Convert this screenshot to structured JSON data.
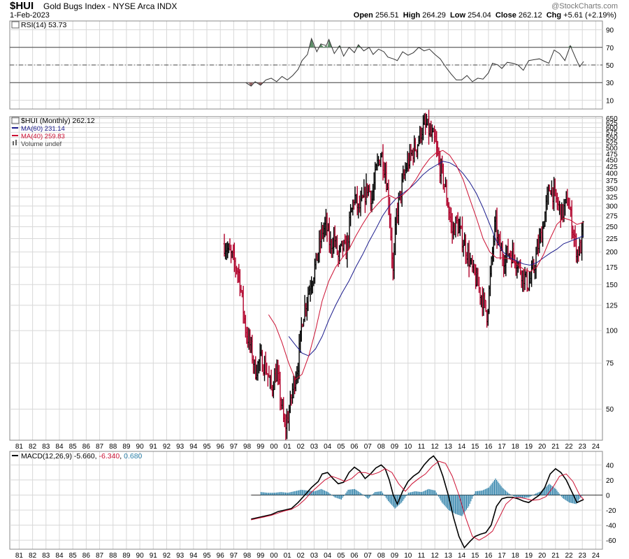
{
  "header": {
    "symbol": "$HUI",
    "name": "Gold Bugs Index - NYSE Arca  INDX",
    "date": "1-Feb-2023",
    "brand": "@StockCharts.com",
    "open_label": "Open",
    "open": "256.51",
    "high_label": "High",
    "high": "264.29",
    "low_label": "Low",
    "low": "254.04",
    "close_label": "Close",
    "close": "262.12",
    "chg_label": "Chg",
    "chg": "+5.61 (+2.19%)"
  },
  "colors": {
    "price_up": "#000000",
    "price_down": "#b0002a",
    "ma60": "#1a1a8c",
    "ma40": "#cc1133",
    "rsi_line": "#333333",
    "rsi_ob_fill": "#5f8f6a",
    "rsi_os_fill": "#8f5f5f",
    "macd_line": "#000000",
    "signal_line": "#cc1133",
    "hist": "#2a7fa8",
    "grid": "#d8d8d8"
  },
  "chart_data": [
    {
      "type": "line",
      "panel": "rsi",
      "legend": "RSI(14) 53.73",
      "yticks": [
        90,
        70,
        50,
        30,
        10
      ],
      "ylim": [
        0,
        100
      ],
      "reference_lines": [
        70,
        50,
        30
      ],
      "series": [
        {
          "values_x": [
            1997.9,
            1998.3,
            1998.6,
            1999.0,
            1999.4,
            1999.8,
            2000.2,
            2000.6,
            2001.0,
            2001.4,
            2001.8,
            2002.1,
            2002.5,
            2002.8,
            2003.2,
            2003.5,
            2003.9,
            2004.1,
            2004.5,
            2004.9,
            2005.2,
            2005.6,
            2006.0,
            2006.3,
            2006.7,
            2007.1,
            2007.4,
            2007.8,
            2008.2,
            2008.5,
            2008.9,
            2009.2,
            2009.6,
            2010.0,
            2010.4,
            2010.8,
            2011.2,
            2011.6,
            2012.0,
            2012.4,
            2012.8,
            2013.2,
            2013.6,
            2014.0,
            2014.4,
            2014.8,
            2015.2,
            2015.6,
            2016.0,
            2016.3,
            2016.7,
            2017.0,
            2017.4,
            2017.8,
            2018.2,
            2018.6,
            2019.0,
            2019.4,
            2019.8,
            2020.2,
            2020.5,
            2020.9,
            2021.3,
            2021.7,
            2022.1,
            2022.5,
            2022.8,
            2023.1
          ],
          "values_y": [
            30,
            26,
            31,
            27,
            33,
            35,
            31,
            37,
            33,
            38,
            45,
            55,
            62,
            80,
            65,
            74,
            72,
            79,
            63,
            72,
            60,
            70,
            64,
            73,
            66,
            70,
            62,
            68,
            65,
            59,
            57,
            55,
            65,
            61,
            64,
            70,
            66,
            68,
            62,
            57,
            48,
            40,
            33,
            33,
            38,
            31,
            35,
            34,
            41,
            52,
            50,
            46,
            53,
            52,
            50,
            44,
            55,
            56,
            57,
            54,
            52,
            67,
            63,
            55,
            72,
            58,
            48,
            54
          ]
        }
      ]
    },
    {
      "type": "bar",
      "panel": "price",
      "legend_price": "$HUI (Monthly) 262.12",
      "legend_ma60": "MA(60) 231.14",
      "legend_ma40": "MA(40) 259.83",
      "legend_volume": "Volume undef",
      "scale": "log",
      "ylim": [
        38,
        660
      ],
      "yticks": [
        650,
        625,
        600,
        575,
        550,
        525,
        500,
        475,
        450,
        425,
        400,
        375,
        350,
        325,
        300,
        275,
        250,
        225,
        200,
        175,
        150,
        125,
        100,
        75,
        50
      ],
      "xticks": [
        "81",
        "82",
        "83",
        "84",
        "85",
        "86",
        "87",
        "88",
        "89",
        "90",
        "91",
        "92",
        "93",
        "94",
        "95",
        "96",
        "97",
        "98",
        "99",
        "00",
        "01",
        "02",
        "03",
        "04",
        "05",
        "06",
        "07",
        "08",
        "09",
        "10",
        "11",
        "12",
        "13",
        "14",
        "15",
        "16",
        "17",
        "18",
        "19",
        "20",
        "21",
        "22",
        "23",
        "24"
      ],
      "price_path_x": [
        1996.3,
        1996.9,
        1997.4,
        1997.9,
        1998.3,
        1998.6,
        1999.0,
        1999.4,
        1999.8,
        2000.2,
        2000.5,
        2000.8,
        2001.1,
        2001.4,
        2001.8,
        2002.1,
        2002.4,
        2002.7,
        2003.0,
        2003.3,
        2003.6,
        2003.9,
        2004.2,
        2004.5,
        2004.8,
        2005.1,
        2005.4,
        2005.7,
        2006.0,
        2006.3,
        2006.6,
        2007.0,
        2007.3,
        2007.7,
        2008.0,
        2008.3,
        2008.6,
        2008.9,
        2009.1,
        2009.5,
        2009.9,
        2010.3,
        2010.7,
        2011.0,
        2011.4,
        2011.7,
        2012.0,
        2012.3,
        2012.6,
        2013.0,
        2013.3,
        2013.6,
        2014.0,
        2014.4,
        2014.8,
        2015.2,
        2015.6,
        2015.9,
        2016.2,
        2016.5,
        2016.8,
        2017.1,
        2017.5,
        2017.9,
        2018.3,
        2018.7,
        2019.0,
        2019.4,
        2019.7,
        2020.0,
        2020.3,
        2020.6,
        2020.9,
        2021.2,
        2021.5,
        2021.9,
        2022.2,
        2022.6,
        2022.9,
        2023.1
      ],
      "price_path_y": [
        215,
        190,
        165,
        100,
        85,
        70,
        78,
        72,
        60,
        70,
        55,
        42,
        48,
        60,
        75,
        110,
        130,
        150,
        170,
        200,
        240,
        255,
        210,
        230,
        190,
        210,
        200,
        270,
        330,
        290,
        310,
        360,
        320,
        430,
        480,
        410,
        300,
        160,
        270,
        350,
        430,
        480,
        520,
        590,
        610,
        560,
        530,
        440,
        390,
        300,
        240,
        260,
        230,
        200,
        170,
        150,
        130,
        115,
        175,
        260,
        210,
        190,
        200,
        195,
        175,
        160,
        150,
        175,
        210,
        240,
        300,
        360,
        330,
        300,
        280,
        320,
        260,
        200,
        210,
        262
      ],
      "series": [
        {
          "name": "MA(60)",
          "x": [
            2001.1,
            2001.6,
            2002.1,
            2002.6,
            2003.1,
            2003.6,
            2004.1,
            2004.6,
            2005.1,
            2005.6,
            2006.1,
            2006.6,
            2007.1,
            2007.6,
            2008.1,
            2008.6,
            2009.1,
            2009.6,
            2010.1,
            2010.6,
            2011.1,
            2011.6,
            2012.1,
            2012.6,
            2013.1,
            2013.6,
            2014.1,
            2014.6,
            2015.1,
            2015.6,
            2016.1,
            2016.6,
            2017.1,
            2017.6,
            2018.1,
            2018.6,
            2019.1,
            2019.6,
            2020.1,
            2020.6,
            2021.1,
            2021.6,
            2022.1,
            2022.6,
            2023.1
          ],
          "values": [
            95,
            88,
            82,
            80,
            85,
            95,
            110,
            125,
            140,
            155,
            175,
            195,
            220,
            245,
            275,
            300,
            320,
            335,
            350,
            370,
            395,
            415,
            430,
            445,
            440,
            425,
            400,
            370,
            335,
            295,
            255,
            220,
            200,
            190,
            185,
            180,
            178,
            182,
            190,
            198,
            205,
            215,
            220,
            225,
            231
          ]
        },
        {
          "name": "MA(40)",
          "x": [
            1999.6,
            2000.1,
            2000.6,
            2001.1,
            2001.6,
            2002.1,
            2002.6,
            2003.1,
            2003.6,
            2004.1,
            2004.6,
            2005.1,
            2005.6,
            2006.1,
            2006.6,
            2007.1,
            2007.6,
            2008.1,
            2008.6,
            2009.1,
            2009.6,
            2010.1,
            2010.6,
            2011.1,
            2011.6,
            2012.1,
            2012.6,
            2013.1,
            2013.6,
            2014.1,
            2014.6,
            2015.1,
            2015.6,
            2016.1,
            2016.6,
            2017.1,
            2017.6,
            2018.1,
            2018.6,
            2019.1,
            2019.6,
            2020.1,
            2020.6,
            2021.1,
            2021.6,
            2022.1,
            2022.6,
            2023.1
          ],
          "values": [
            115,
            105,
            90,
            75,
            65,
            68,
            80,
            100,
            130,
            155,
            175,
            190,
            205,
            230,
            255,
            280,
            300,
            320,
            330,
            320,
            330,
            350,
            380,
            420,
            455,
            480,
            490,
            470,
            430,
            380,
            320,
            270,
            225,
            200,
            190,
            190,
            188,
            180,
            172,
            168,
            175,
            195,
            225,
            255,
            270,
            265,
            255,
            260
          ]
        }
      ]
    },
    {
      "type": "line",
      "panel": "macd",
      "legend": "MACD(12,26,9)",
      "legend_macd": "-5.660",
      "legend_signal": "-6.340",
      "legend_hist": "0.680",
      "yticks": [
        40,
        20,
        0,
        -20,
        -40,
        -60
      ],
      "ylim": [
        -72,
        58
      ],
      "series": [
        {
          "name": "MACD",
          "x": [
            1998.3,
            1998.8,
            1999.3,
            1999.8,
            2000.3,
            2000.8,
            2001.3,
            2001.8,
            2002.3,
            2002.8,
            2003.3,
            2003.6,
            2004.0,
            2004.4,
            2004.8,
            2005.2,
            2005.6,
            2006.0,
            2006.4,
            2006.8,
            2007.2,
            2007.6,
            2008.0,
            2008.3,
            2008.6,
            2008.9,
            2009.2,
            2009.6,
            2010.0,
            2010.4,
            2010.8,
            2011.2,
            2011.6,
            2011.9,
            2012.2,
            2012.6,
            2013.0,
            2013.4,
            2013.8,
            2014.2,
            2014.6,
            2015.0,
            2015.4,
            2015.8,
            2016.2,
            2016.6,
            2017.0,
            2017.4,
            2017.8,
            2018.2,
            2018.6,
            2019.0,
            2019.4,
            2019.8,
            2020.2,
            2020.6,
            2021.0,
            2021.4,
            2021.8,
            2022.2,
            2022.6,
            2023.1
          ],
          "values": [
            -32,
            -30,
            -28,
            -26,
            -22,
            -20,
            -18,
            -10,
            0,
            10,
            18,
            28,
            30,
            22,
            15,
            17,
            30,
            37,
            32,
            22,
            28,
            36,
            40,
            35,
            20,
            0,
            -12,
            5,
            18,
            25,
            30,
            40,
            48,
            52,
            45,
            25,
            0,
            -30,
            -55,
            -70,
            -62,
            -55,
            -52,
            -50,
            -40,
            -15,
            -5,
            -3,
            -3,
            -5,
            -8,
            -10,
            -5,
            0,
            10,
            28,
            35,
            30,
            20,
            5,
            -10,
            -6
          ]
        },
        {
          "name": "Signal",
          "x": [
            1998.3,
            1998.8,
            1999.3,
            1999.8,
            2000.3,
            2000.8,
            2001.3,
            2001.8,
            2002.3,
            2002.8,
            2003.3,
            2003.8,
            2004.3,
            2004.8,
            2005.3,
            2005.8,
            2006.3,
            2006.8,
            2007.3,
            2007.8,
            2008.3,
            2008.8,
            2009.3,
            2009.8,
            2010.3,
            2010.8,
            2011.3,
            2011.8,
            2012.3,
            2012.8,
            2013.3,
            2013.8,
            2014.3,
            2014.8,
            2015.3,
            2015.8,
            2016.3,
            2016.8,
            2017.3,
            2017.8,
            2018.3,
            2018.8,
            2019.3,
            2019.8,
            2020.3,
            2020.8,
            2021.3,
            2021.8,
            2022.3,
            2022.8,
            2023.1
          ],
          "values": [
            -33,
            -31,
            -29,
            -27,
            -24,
            -21,
            -19,
            -14,
            -6,
            4,
            12,
            20,
            25,
            22,
            18,
            22,
            30,
            30,
            27,
            30,
            35,
            30,
            15,
            5,
            15,
            22,
            28,
            38,
            45,
            42,
            25,
            0,
            -30,
            -55,
            -60,
            -55,
            -48,
            -30,
            -12,
            -4,
            -3,
            -5,
            -7,
            -6,
            -2,
            10,
            25,
            28,
            18,
            0,
            -6
          ]
        }
      ],
      "histogram": {
        "x": [
          1999.0,
          1999.5,
          2000.0,
          2000.5,
          2001.0,
          2001.5,
          2002.0,
          2002.5,
          2003.0,
          2003.5,
          2004.0,
          2004.5,
          2005.0,
          2005.5,
          2006.0,
          2006.5,
          2007.0,
          2007.5,
          2008.0,
          2008.5,
          2009.0,
          2009.5,
          2010.0,
          2010.5,
          2011.0,
          2011.5,
          2012.0,
          2012.5,
          2013.0,
          2013.5,
          2014.0,
          2014.5,
          2015.0,
          2015.5,
          2016.0,
          2016.5,
          2017.0,
          2017.5,
          2018.0,
          2018.5,
          2019.0,
          2019.5,
          2020.0,
          2020.5,
          2021.0,
          2021.5,
          2022.0,
          2022.5,
          2023.0
        ],
        "values": [
          4,
          3,
          3,
          4,
          3,
          5,
          7,
          6,
          5,
          8,
          4,
          -3,
          -6,
          7,
          8,
          2,
          -5,
          4,
          5,
          -8,
          -18,
          -10,
          3,
          5,
          4,
          8,
          6,
          -10,
          -20,
          -25,
          -28,
          -15,
          5,
          6,
          10,
          22,
          10,
          2,
          -3,
          -4,
          -3,
          2,
          6,
          15,
          8,
          -4,
          -10,
          -12,
          1
        ]
      }
    }
  ]
}
